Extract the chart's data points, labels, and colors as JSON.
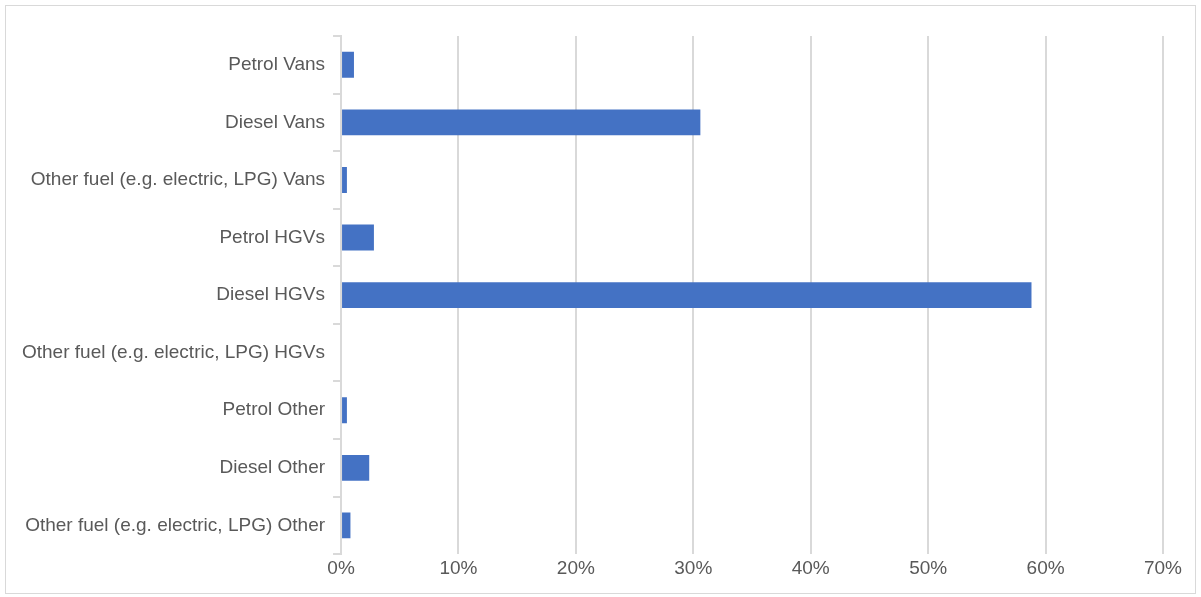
{
  "chart_data": {
    "type": "bar",
    "orientation": "horizontal",
    "categories": [
      "Petrol Vans",
      "Diesel Vans",
      "Other fuel (e.g. electric, LPG) Vans",
      "Petrol HGVs",
      "Diesel HGVs",
      "Other fuel (e.g. electric, LPG) HGVs",
      "Petrol Other",
      "Diesel Other",
      "Other fuel (e.g. electric, LPG) Other"
    ],
    "values": [
      1.1,
      30.6,
      0.5,
      2.8,
      58.8,
      0,
      0.5,
      2.4,
      0.8
    ],
    "color": "#4472c4",
    "xlim": [
      0,
      70
    ],
    "xticks": [
      {
        "value": 0,
        "label": "0%"
      },
      {
        "value": 10,
        "label": "10%"
      },
      {
        "value": 20,
        "label": "20%"
      },
      {
        "value": 30,
        "label": "30%"
      },
      {
        "value": 40,
        "label": "40%"
      },
      {
        "value": 50,
        "label": "50%"
      },
      {
        "value": 60,
        "label": "60%"
      },
      {
        "value": 70,
        "label": "70%"
      }
    ],
    "grid": "x",
    "legend": false
  }
}
